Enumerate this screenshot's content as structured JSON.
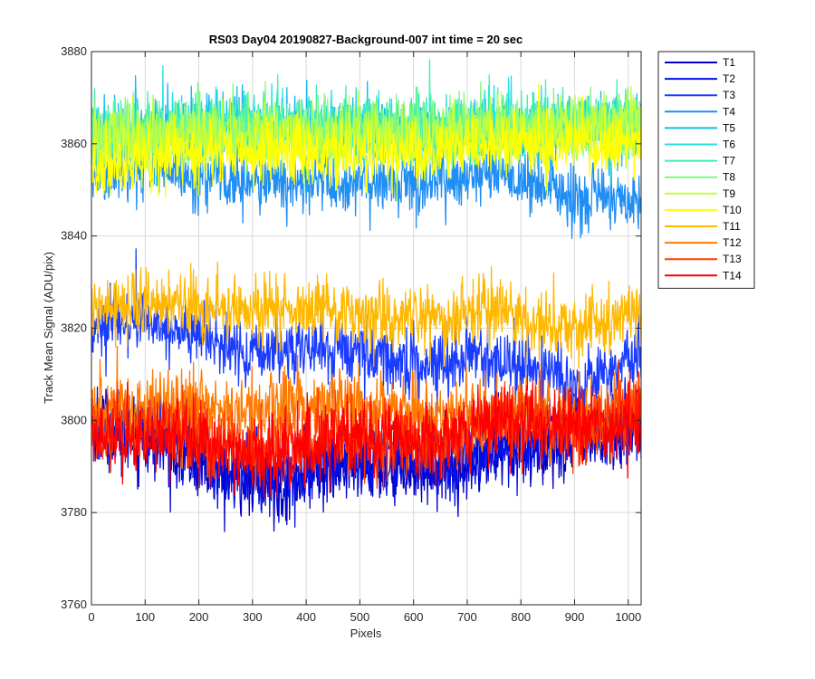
{
  "chart_data": {
    "type": "line",
    "title": "RS03 Day04 20190827-Background-007 int time = 20 sec",
    "xlabel": "Pixels",
    "ylabel": "Track Mean Signal (ADU/pix)",
    "xlim": [
      0,
      1024
    ],
    "ylim": [
      3760,
      3880
    ],
    "xticks": [
      0,
      100,
      200,
      300,
      400,
      500,
      600,
      700,
      800,
      900,
      1000
    ],
    "yticks": [
      3760,
      3780,
      3800,
      3820,
      3840,
      3860,
      3880
    ],
    "grid": true,
    "legend_position": "outside-top-right",
    "x_range": [
      1,
      1024
    ],
    "series": [
      {
        "name": "T1",
        "color": "#0000c8",
        "profile": [
          [
            0,
            3800
          ],
          [
            150,
            3794
          ],
          [
            250,
            3788
          ],
          [
            350,
            3786
          ],
          [
            450,
            3790
          ],
          [
            550,
            3790
          ],
          [
            650,
            3790
          ],
          [
            750,
            3792
          ],
          [
            850,
            3794
          ],
          [
            950,
            3796
          ],
          [
            1024,
            3800
          ]
        ],
        "noise": 4
      },
      {
        "name": "T2",
        "color": "#0010e6",
        "profile": [
          [
            0,
            3800
          ],
          [
            150,
            3796
          ],
          [
            250,
            3790
          ],
          [
            350,
            3788
          ],
          [
            450,
            3792
          ],
          [
            550,
            3792
          ],
          [
            650,
            3792
          ],
          [
            750,
            3794
          ],
          [
            850,
            3796
          ],
          [
            950,
            3798
          ],
          [
            1024,
            3802
          ]
        ],
        "noise": 4
      },
      {
        "name": "T3",
        "color": "#1a3cff",
        "profile": [
          [
            0,
            3820
          ],
          [
            100,
            3822
          ],
          [
            200,
            3818
          ],
          [
            300,
            3814
          ],
          [
            400,
            3816
          ],
          [
            500,
            3815
          ],
          [
            600,
            3812
          ],
          [
            700,
            3814
          ],
          [
            800,
            3812
          ],
          [
            900,
            3808
          ],
          [
            1024,
            3814
          ]
        ],
        "noise": 3.5
      },
      {
        "name": "T4",
        "color": "#1f8ef5",
        "profile": [
          [
            0,
            3853
          ],
          [
            100,
            3855
          ],
          [
            200,
            3853
          ],
          [
            300,
            3851
          ],
          [
            400,
            3852
          ],
          [
            500,
            3851
          ],
          [
            600,
            3852
          ],
          [
            700,
            3853
          ],
          [
            800,
            3852
          ],
          [
            900,
            3848
          ],
          [
            1024,
            3848
          ]
        ],
        "noise": 3.5
      },
      {
        "name": "T5",
        "color": "#18b8f0",
        "profile": [
          [
            0,
            3862
          ],
          [
            200,
            3864
          ],
          [
            400,
            3863
          ],
          [
            600,
            3863
          ],
          [
            800,
            3863
          ],
          [
            1024,
            3864
          ]
        ],
        "noise": 3.5
      },
      {
        "name": "T6",
        "color": "#28e0e0",
        "profile": [
          [
            0,
            3862
          ],
          [
            200,
            3864
          ],
          [
            400,
            3864
          ],
          [
            600,
            3863
          ],
          [
            800,
            3864
          ],
          [
            1024,
            3864
          ]
        ],
        "noise": 3.5
      },
      {
        "name": "T7",
        "color": "#40f0b0",
        "profile": [
          [
            0,
            3862
          ],
          [
            200,
            3864
          ],
          [
            400,
            3863
          ],
          [
            600,
            3864
          ],
          [
            800,
            3864
          ],
          [
            1024,
            3865
          ]
        ],
        "noise": 3.5
      },
      {
        "name": "T8",
        "color": "#80f880",
        "profile": [
          [
            0,
            3861
          ],
          [
            200,
            3863
          ],
          [
            400,
            3862
          ],
          [
            600,
            3863
          ],
          [
            800,
            3863
          ],
          [
            1024,
            3864
          ]
        ],
        "noise": 3.5
      },
      {
        "name": "T9",
        "color": "#c0ff40",
        "profile": [
          [
            0,
            3860
          ],
          [
            200,
            3862
          ],
          [
            400,
            3862
          ],
          [
            600,
            3862
          ],
          [
            800,
            3862
          ],
          [
            1024,
            3864
          ]
        ],
        "noise": 3.5
      },
      {
        "name": "T10",
        "color": "#ffff00",
        "profile": [
          [
            0,
            3855
          ],
          [
            200,
            3858
          ],
          [
            400,
            3858
          ],
          [
            600,
            3858
          ],
          [
            800,
            3860
          ],
          [
            1024,
            3860
          ]
        ],
        "noise": 3.5
      },
      {
        "name": "T11",
        "color": "#ffb800",
        "profile": [
          [
            0,
            3824
          ],
          [
            150,
            3826
          ],
          [
            300,
            3823
          ],
          [
            450,
            3824
          ],
          [
            550,
            3822
          ],
          [
            650,
            3822
          ],
          [
            750,
            3824
          ],
          [
            850,
            3820
          ],
          [
            950,
            3822
          ],
          [
            1024,
            3824
          ]
        ],
        "noise": 3.5
      },
      {
        "name": "T12",
        "color": "#ff7a00",
        "profile": [
          [
            0,
            3802
          ],
          [
            150,
            3804
          ],
          [
            300,
            3802
          ],
          [
            450,
            3804
          ],
          [
            550,
            3802
          ],
          [
            650,
            3800
          ],
          [
            750,
            3802
          ],
          [
            850,
            3802
          ],
          [
            950,
            3800
          ],
          [
            1024,
            3804
          ]
        ],
        "noise": 4
      },
      {
        "name": "T13",
        "color": "#ff3a00",
        "profile": [
          [
            0,
            3798
          ],
          [
            150,
            3798
          ],
          [
            250,
            3794
          ],
          [
            350,
            3794
          ],
          [
            450,
            3798
          ],
          [
            550,
            3796
          ],
          [
            650,
            3796
          ],
          [
            750,
            3800
          ],
          [
            850,
            3800
          ],
          [
            950,
            3798
          ],
          [
            1024,
            3802
          ]
        ],
        "noise": 4
      },
      {
        "name": "T14",
        "color": "#ff0000",
        "profile": [
          [
            0,
            3796
          ],
          [
            150,
            3796
          ],
          [
            250,
            3794
          ],
          [
            350,
            3792
          ],
          [
            450,
            3796
          ],
          [
            550,
            3796
          ],
          [
            650,
            3796
          ],
          [
            750,
            3800
          ],
          [
            850,
            3800
          ],
          [
            950,
            3798
          ],
          [
            1024,
            3800
          ]
        ],
        "noise": 4
      }
    ]
  }
}
